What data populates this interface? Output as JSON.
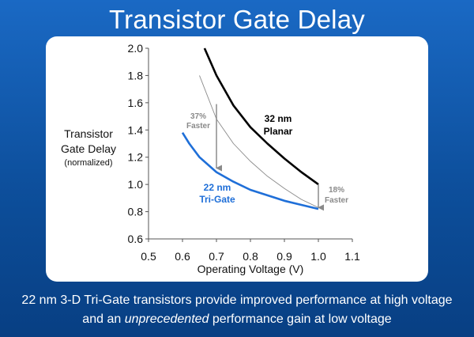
{
  "slide": {
    "title": "Transistor Gate Delay",
    "caption_line1": "22 nm 3-D Tri-Gate transistors provide improved performance at high voltage",
    "caption_line2_pre": "and an ",
    "caption_line2_em": "unprecedented",
    "caption_line2_post": " performance gain at low voltage"
  },
  "colors": {
    "background": "#0d4f9c",
    "planar": "#000000",
    "trigate": "#1f6fd8",
    "reference": "#8a8a8a",
    "annotation_arrow": "#8a8a8a"
  },
  "chart_data": {
    "type": "line",
    "title": "Transistor Gate Delay",
    "xlabel": "Operating Voltage (V)",
    "ylabel": "Transistor Gate Delay",
    "ylabel_line1": "Transistor",
    "ylabel_line2": "Gate Delay",
    "ylabel_sub": "(normalized)",
    "xlim": [
      0.5,
      1.1
    ],
    "ylim": [
      0.6,
      2.0
    ],
    "xticks": [
      "0.5",
      "0.6",
      "0.7",
      "0.8",
      "0.9",
      "1.0",
      "1.1"
    ],
    "yticks": [
      "2.0",
      "1.8",
      "1.6",
      "1.4",
      "1.2",
      "1.0",
      "0.8",
      "0.6"
    ],
    "grid": false,
    "series": [
      {
        "name": "32 nm Planar",
        "label_line1": "32 nm",
        "label_line2": "Planar",
        "color": "#000000",
        "x": [
          0.665,
          0.7,
          0.75,
          0.8,
          0.85,
          0.9,
          0.95,
          1.0
        ],
        "y": [
          2.0,
          1.8,
          1.58,
          1.42,
          1.3,
          1.19,
          1.09,
          1.0
        ]
      },
      {
        "name": "22 nm Tri-Gate",
        "label_line1": "22 nm",
        "label_line2": "Tri-Gate",
        "color": "#1f6fd8",
        "x": [
          0.6,
          0.62,
          0.65,
          0.7,
          0.75,
          0.8,
          0.85,
          0.9,
          0.95,
          1.0
        ],
        "y": [
          1.38,
          1.3,
          1.2,
          1.09,
          1.02,
          0.96,
          0.92,
          0.88,
          0.85,
          0.82
        ]
      },
      {
        "color": "#8a8a8a",
        "x": [
          0.65,
          0.7,
          0.75,
          0.8,
          0.85,
          0.9,
          0.95,
          1.0
        ],
        "y": [
          1.8,
          1.48,
          1.3,
          1.17,
          1.06,
          0.97,
          0.89,
          0.83
        ]
      }
    ],
    "annotations": [
      {
        "line1": "37%",
        "line2": "Faster",
        "x": 0.7,
        "y_from": 1.59,
        "y_to": 1.12
      },
      {
        "line1": "18%",
        "line2": "Faster",
        "x": 1.0,
        "y_from": 1.0,
        "y_to": 0.83
      }
    ]
  }
}
